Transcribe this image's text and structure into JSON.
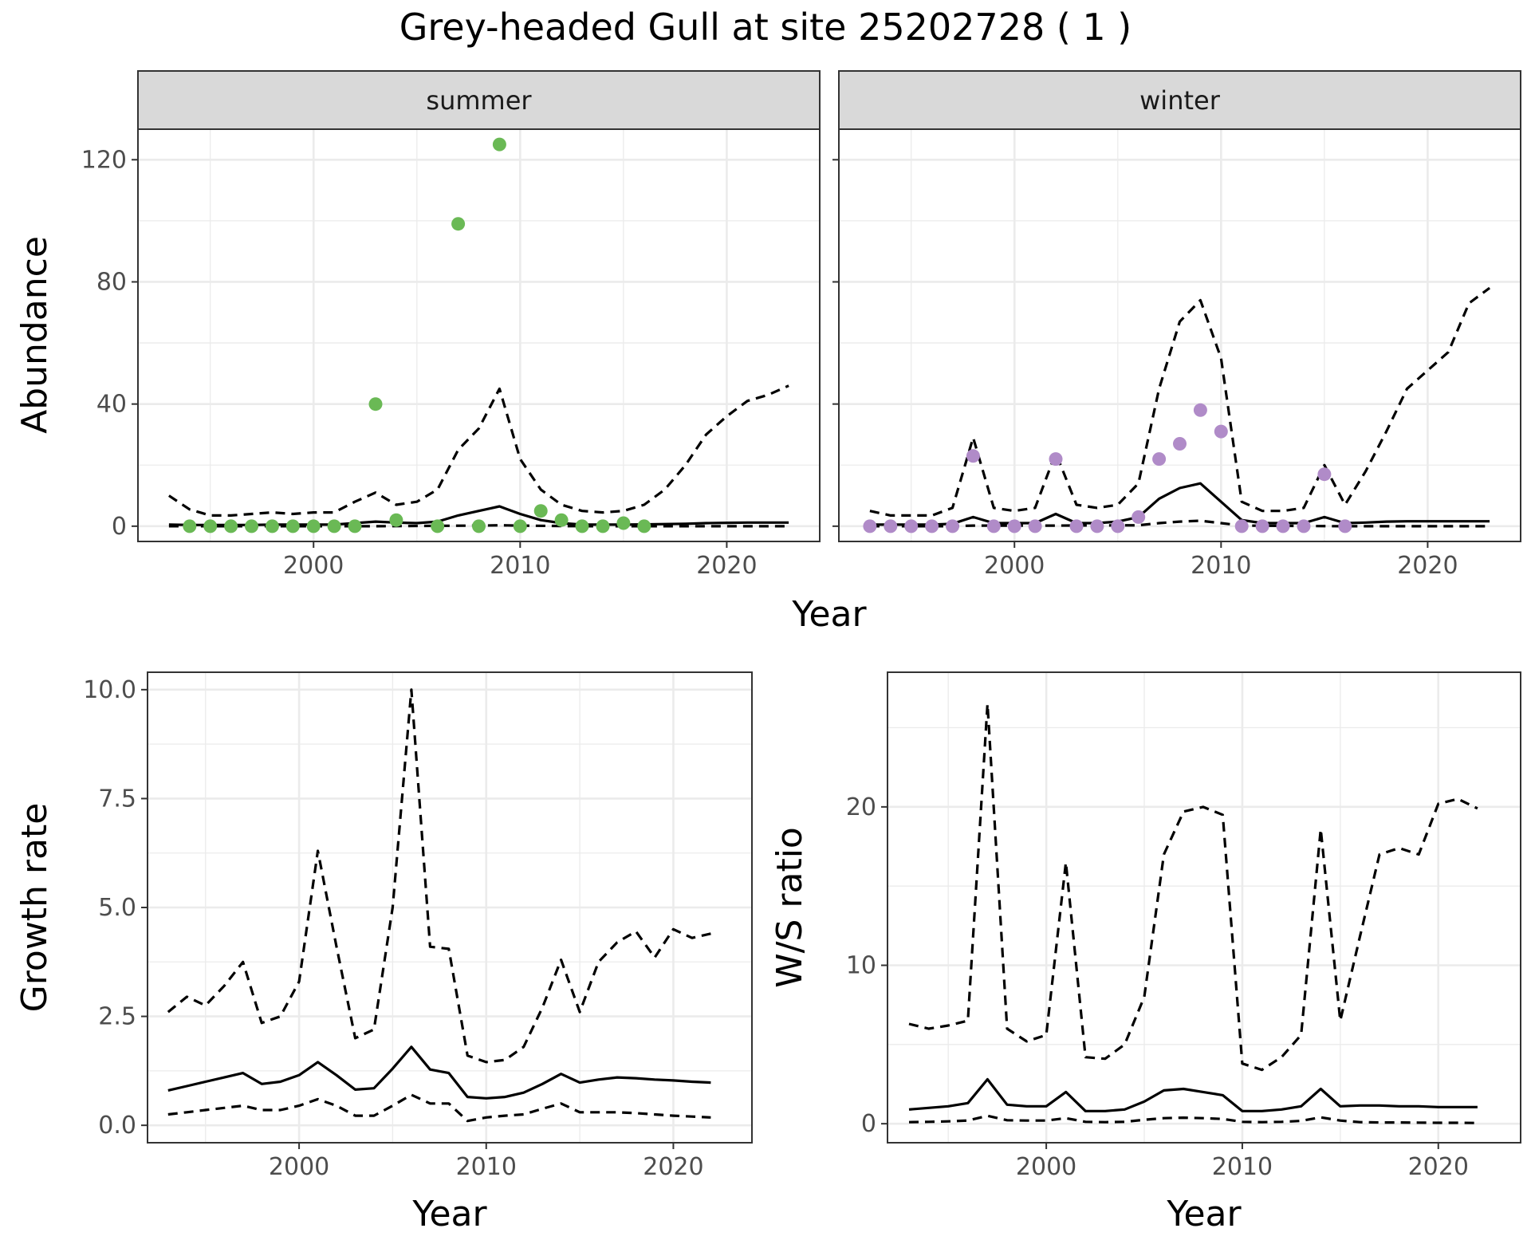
{
  "title": "Grey-headed Gull at site 25202728 ( 1 )",
  "colors": {
    "summer": "#6ab955",
    "winter": "#b08bc8",
    "line": "#000000"
  },
  "chart_data": [
    {
      "type": "line",
      "name": "abundance",
      "xlabel": "Year",
      "ylabel": "Abundance",
      "xlim": [
        1991.5,
        2024.5
      ],
      "ylim": [
        -5,
        130
      ],
      "xticks": [
        2000,
        2010,
        2020
      ],
      "yticks": [
        0,
        40,
        80,
        120
      ],
      "facets": [
        {
          "label": "summer",
          "point_color": "#6ab955",
          "points": {
            "x": [
              1994,
              1995,
              1996,
              1997,
              1998,
              1999,
              2000,
              2001,
              2002,
              2003,
              2004,
              2006,
              2007,
              2008,
              2009,
              2010,
              2011,
              2012,
              2013,
              2014,
              2015,
              2016
            ],
            "y": [
              0,
              0,
              0,
              0,
              0,
              0,
              0,
              0,
              0,
              40,
              2,
              0,
              99,
              0,
              125,
              0,
              5,
              2,
              0,
              0,
              1,
              0
            ]
          },
          "estimate": {
            "x": [
              1993,
              1994,
              1995,
              1996,
              1997,
              1998,
              1999,
              2000,
              2001,
              2002,
              2003,
              2004,
              2005,
              2006,
              2007,
              2008,
              2009,
              2010,
              2011,
              2012,
              2013,
              2014,
              2015,
              2016,
              2017,
              2018,
              2019,
              2020,
              2021,
              2022,
              2023
            ],
            "y": [
              0.5,
              0.4,
              0.4,
              0.4,
              0.4,
              0.5,
              0.5,
              0.5,
              0.5,
              1,
              1.5,
              1.2,
              1,
              1.5,
              3.5,
              5,
              6.5,
              4,
              2,
              1,
              0.5,
              0.5,
              0.5,
              0.6,
              0.7,
              0.8,
              1,
              1.1,
              1.2,
              1.2,
              1.2
            ]
          },
          "upper": {
            "x": [
              1993,
              1994,
              1995,
              1996,
              1997,
              1998,
              1999,
              2000,
              2001,
              2002,
              2003,
              2004,
              2005,
              2006,
              2007,
              2008,
              2009,
              2010,
              2011,
              2012,
              2013,
              2014,
              2015,
              2016,
              2017,
              2018,
              2019,
              2020,
              2021,
              2022,
              2023
            ],
            "y": [
              10,
              5.5,
              3.5,
              3.5,
              4,
              4.5,
              4,
              4.5,
              4.5,
              8,
              11,
              7,
              8,
              12,
              25,
              32,
              45,
              22,
              12,
              7,
              5,
              4.5,
              5,
              7,
              12,
              20,
              30,
              36,
              41,
              43,
              46
            ]
          },
          "lower": {
            "x": [
              1993,
              1998,
              2003,
              2008,
              2009,
              2010,
              2013,
              2018,
              2023
            ],
            "y": [
              0,
              0,
              0,
              0.2,
              0.3,
              0.2,
              0,
              0,
              0
            ]
          }
        },
        {
          "label": "winter",
          "point_color": "#b08bc8",
          "points": {
            "x": [
              1993,
              1994,
              1995,
              1996,
              1997,
              1998,
              1999,
              2000,
              2001,
              2002,
              2003,
              2004,
              2005,
              2006,
              2007,
              2008,
              2009,
              2010,
              2011,
              2012,
              2013,
              2014,
              2015,
              2016
            ],
            "y": [
              0,
              0,
              0,
              0,
              0,
              23,
              0,
              0,
              0,
              22,
              0,
              0,
              0,
              3,
              22,
              27,
              38,
              31,
              0,
              0,
              0,
              0,
              17,
              0
            ]
          },
          "estimate": {
            "x": [
              1993,
              1994,
              1995,
              1996,
              1997,
              1998,
              1999,
              2000,
              2001,
              2002,
              2003,
              2004,
              2005,
              2006,
              2007,
              2008,
              2009,
              2010,
              2011,
              2012,
              2013,
              2014,
              2015,
              2016,
              2017,
              2018,
              2019,
              2020,
              2021,
              2022,
              2023
            ],
            "y": [
              0.5,
              0.5,
              0.5,
              0.5,
              0.8,
              3,
              1,
              1,
              1,
              4,
              1,
              1,
              1.5,
              3,
              9,
              12.5,
              14,
              8,
              2,
              1,
              1,
              1,
              3,
              1,
              1.2,
              1.5,
              1.6,
              1.6,
              1.6,
              1.6,
              1.6
            ]
          },
          "upper": {
            "x": [
              1993,
              1994,
              1995,
              1996,
              1997,
              1998,
              1999,
              2000,
              2001,
              2002,
              2003,
              2004,
              2005,
              2006,
              2007,
              2008,
              2009,
              2010,
              2011,
              2012,
              2013,
              2014,
              2015,
              2016,
              2017,
              2018,
              2019,
              2020,
              2021,
              2022,
              2023
            ],
            "y": [
              5,
              3.5,
              3.5,
              3.5,
              6,
              29,
              6,
              5,
              6,
              24,
              7,
              6,
              7,
              14,
              45,
              67,
              74,
              55,
              8,
              5,
              5,
              6,
              20,
              7,
              18,
              31,
              45,
              51,
              57,
              73,
              78
            ]
          },
          "lower": {
            "x": [
              1993,
              1997,
              1998,
              2002,
              2006,
              2007,
              2008,
              2009,
              2010,
              2011,
              2016,
              2023
            ],
            "y": [
              0,
              0,
              0.2,
              0.2,
              0.3,
              1,
              1.5,
              1.8,
              1,
              0.2,
              0,
              0
            ]
          }
        }
      ]
    },
    {
      "type": "line",
      "name": "growth",
      "xlabel": "Year",
      "ylabel": "Growth rate",
      "xlim": [
        1991.9,
        2024.2
      ],
      "ylim": [
        -0.4,
        10.4
      ],
      "xticks": [
        2000,
        2010,
        2020
      ],
      "yticks": [
        0.0,
        2.5,
        5.0,
        7.5,
        10.0
      ],
      "ytick_labels": [
        "0.0",
        "2.5",
        "5.0",
        "7.5",
        "10.0"
      ],
      "estimate": {
        "x": [
          1993,
          1994,
          1995,
          1996,
          1997,
          1998,
          1999,
          2000,
          2001,
          2002,
          2003,
          2004,
          2005,
          2006,
          2007,
          2008,
          2009,
          2010,
          2011,
          2012,
          2013,
          2014,
          2015,
          2016,
          2017,
          2018,
          2019,
          2020,
          2021,
          2022
        ],
        "y": [
          0.8,
          0.9,
          1.0,
          1.1,
          1.2,
          0.95,
          1.0,
          1.15,
          1.45,
          1.15,
          0.82,
          0.85,
          1.3,
          1.8,
          1.28,
          1.2,
          0.65,
          0.62,
          0.65,
          0.75,
          0.95,
          1.18,
          0.98,
          1.05,
          1.1,
          1.08,
          1.05,
          1.03,
          1.0,
          0.98
        ]
      },
      "upper": {
        "x": [
          1993,
          1994,
          1995,
          1996,
          1997,
          1998,
          1999,
          2000,
          2001,
          2002,
          2003,
          2004,
          2005,
          2006,
          2007,
          2008,
          2009,
          2010,
          2011,
          2012,
          2013,
          2014,
          2015,
          2016,
          2017,
          2018,
          2019,
          2020,
          2021,
          2022
        ],
        "y": [
          2.6,
          2.95,
          2.75,
          3.2,
          3.75,
          2.35,
          2.5,
          3.3,
          6.3,
          4.1,
          2.0,
          2.2,
          5.0,
          10.0,
          4.1,
          4.05,
          1.6,
          1.45,
          1.5,
          1.8,
          2.7,
          3.8,
          2.6,
          3.75,
          4.2,
          4.45,
          3.85,
          4.5,
          4.3,
          4.4
        ]
      },
      "lower": {
        "x": [
          1993,
          1994,
          1995,
          1996,
          1997,
          1998,
          1999,
          2000,
          2001,
          2002,
          2003,
          2004,
          2005,
          2006,
          2007,
          2008,
          2009,
          2010,
          2011,
          2012,
          2013,
          2014,
          2015,
          2016,
          2017,
          2018,
          2019,
          2020,
          2021,
          2022
        ],
        "y": [
          0.25,
          0.3,
          0.35,
          0.4,
          0.45,
          0.35,
          0.35,
          0.45,
          0.6,
          0.45,
          0.22,
          0.22,
          0.45,
          0.7,
          0.5,
          0.5,
          0.1,
          0.18,
          0.22,
          0.25,
          0.38,
          0.5,
          0.3,
          0.3,
          0.3,
          0.28,
          0.25,
          0.22,
          0.2,
          0.18
        ]
      }
    },
    {
      "type": "line",
      "name": "ratio",
      "xlabel": "Year",
      "ylabel": "W/S ratio",
      "xlim": [
        1991.9,
        2024.2
      ],
      "ylim": [
        -1.2,
        28.5
      ],
      "xticks": [
        2000,
        2010,
        2020
      ],
      "yticks": [
        0,
        10,
        20
      ],
      "estimate": {
        "x": [
          1993,
          1994,
          1995,
          1996,
          1997,
          1998,
          1999,
          2000,
          2001,
          2002,
          2003,
          2004,
          2005,
          2006,
          2007,
          2008,
          2009,
          2010,
          2011,
          2012,
          2013,
          2014,
          2015,
          2016,
          2017,
          2018,
          2019,
          2020,
          2021,
          2022
        ],
        "y": [
          0.9,
          1.0,
          1.1,
          1.3,
          2.8,
          1.2,
          1.1,
          1.1,
          2.0,
          0.8,
          0.8,
          0.9,
          1.4,
          2.1,
          2.2,
          2.0,
          1.8,
          0.8,
          0.8,
          0.9,
          1.1,
          2.2,
          1.1,
          1.15,
          1.15,
          1.1,
          1.1,
          1.05,
          1.05,
          1.05
        ]
      },
      "upper": {
        "x": [
          1993,
          1994,
          1995,
          1996,
          1997,
          1998,
          1999,
          2000,
          2001,
          2002,
          2003,
          2004,
          2005,
          2006,
          2007,
          2008,
          2009,
          2010,
          2011,
          2012,
          2013,
          2014,
          2015,
          2016,
          2017,
          2018,
          2019,
          2020,
          2021,
          2022
        ],
        "y": [
          6.3,
          6.0,
          6.2,
          6.5,
          26.5,
          6.0,
          5.2,
          5.6,
          16.5,
          4.2,
          4.1,
          5.0,
          8.0,
          17.0,
          19.7,
          20.0,
          19.5,
          3.8,
          3.4,
          4.2,
          5.6,
          18.6,
          6.5,
          11.8,
          17.0,
          17.4,
          17.0,
          20.2,
          20.5,
          19.9
        ]
      },
      "lower": {
        "x": [
          1993,
          1994,
          1995,
          1996,
          1997,
          1998,
          1999,
          2000,
          2001,
          2002,
          2003,
          2004,
          2005,
          2006,
          2007,
          2008,
          2009,
          2010,
          2011,
          2012,
          2013,
          2014,
          2015,
          2016,
          2017,
          2018,
          2019,
          2020,
          2021,
          2022
        ],
        "y": [
          0.1,
          0.12,
          0.15,
          0.2,
          0.5,
          0.22,
          0.2,
          0.2,
          0.35,
          0.12,
          0.1,
          0.12,
          0.25,
          0.35,
          0.38,
          0.35,
          0.3,
          0.12,
          0.1,
          0.12,
          0.18,
          0.4,
          0.2,
          0.1,
          0.08,
          0.08,
          0.07,
          0.06,
          0.06,
          0.05
        ]
      }
    }
  ]
}
